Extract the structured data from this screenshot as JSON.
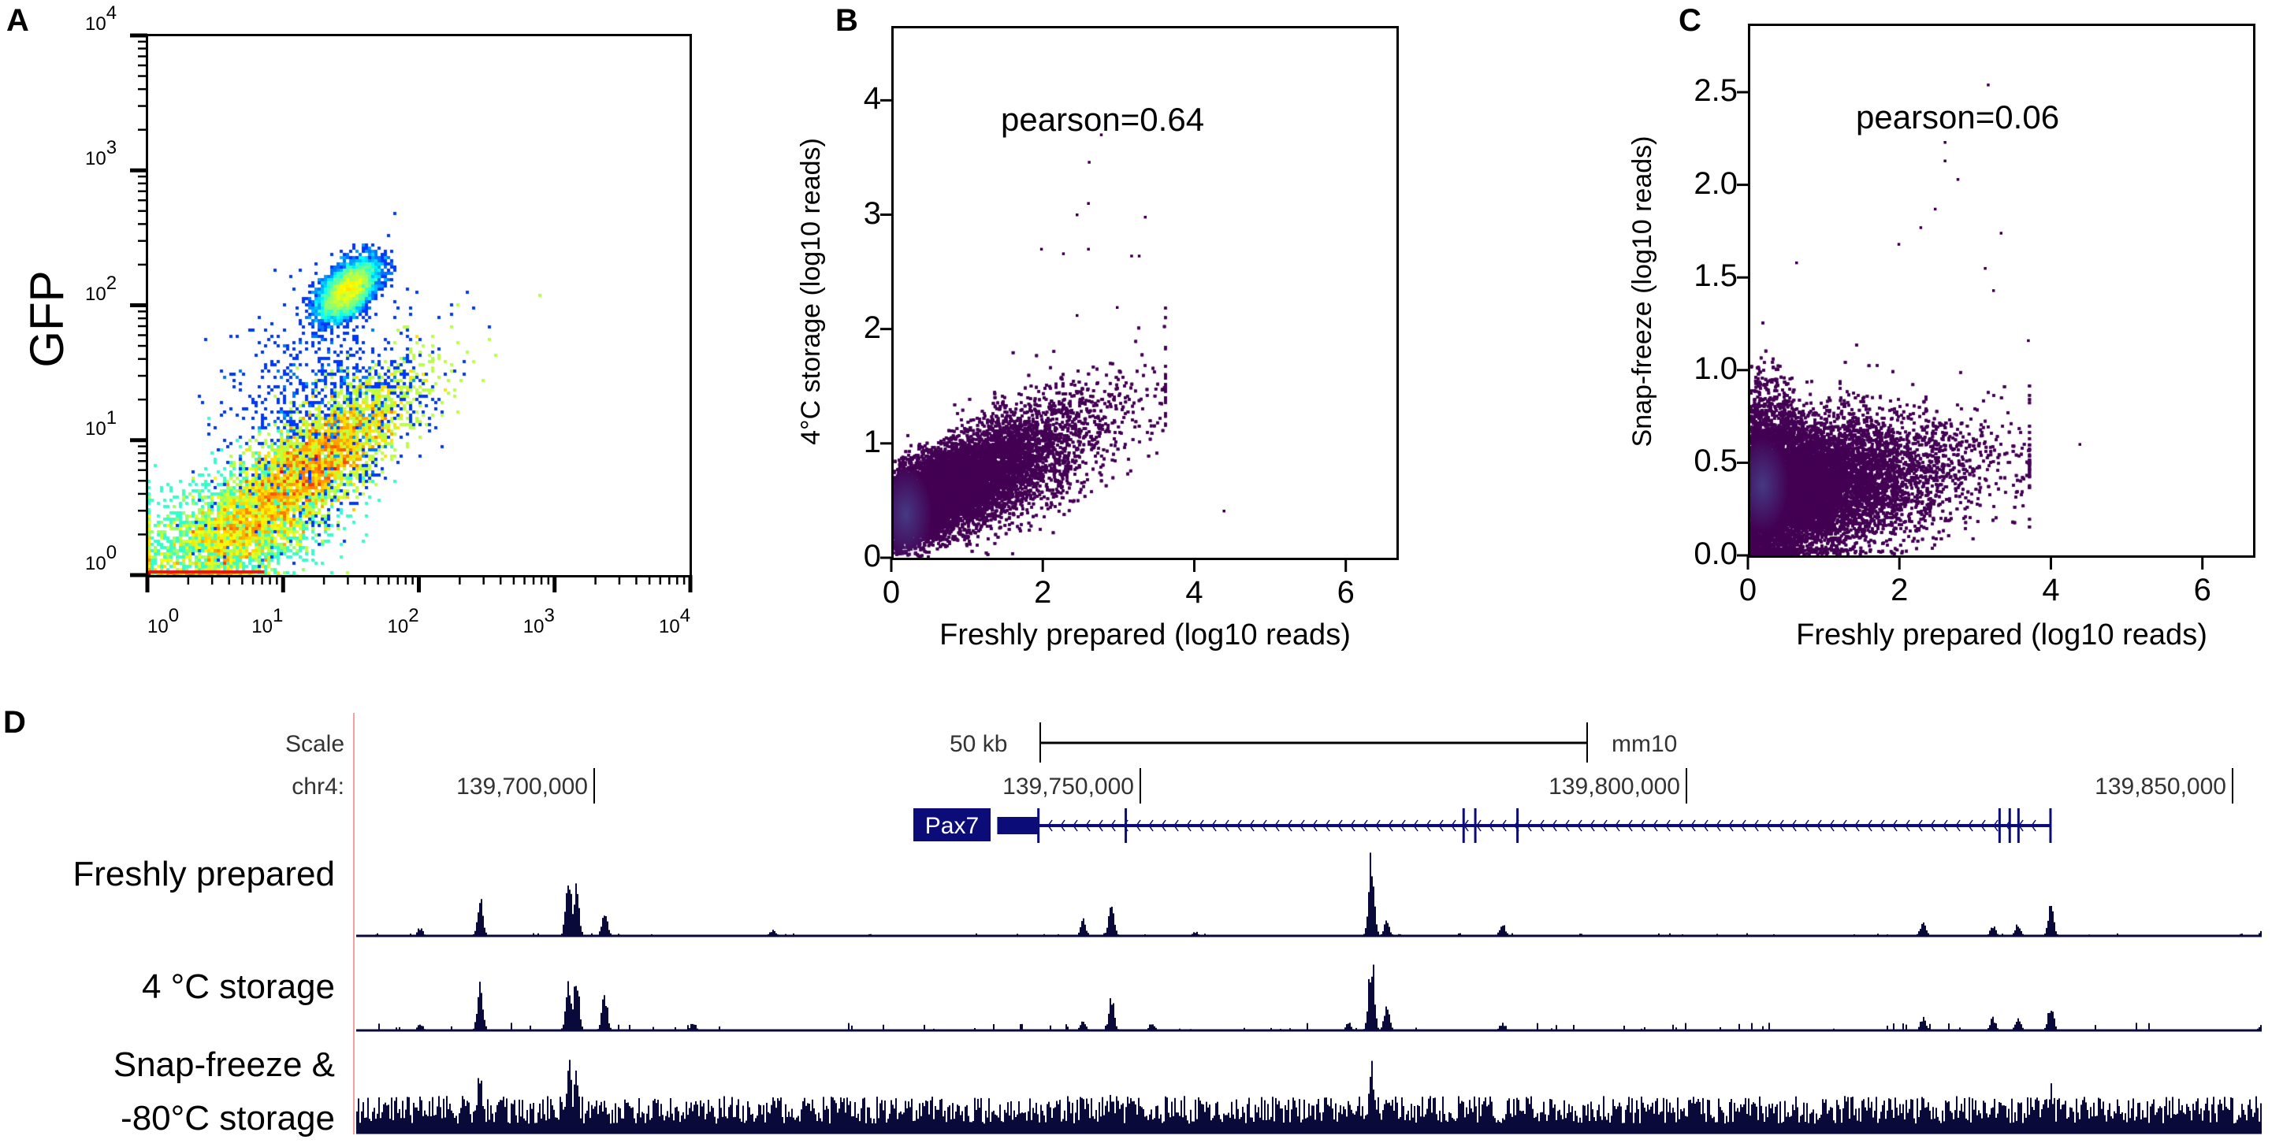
{
  "panels": {
    "A": "A",
    "B": "B",
    "C": "C",
    "D": "D"
  },
  "chart_data": [
    {
      "panel": "A",
      "type": "scatter",
      "style": "density",
      "colormap": "jet",
      "ylabel": "GFP",
      "xlabel": "",
      "x_scale": "log",
      "y_scale": "log",
      "xlim": [
        1,
        10000
      ],
      "ylim": [
        1,
        10000
      ],
      "x_ticks": [
        {
          "base": "10",
          "exp": "0"
        },
        {
          "base": "10",
          "exp": "1"
        },
        {
          "base": "10",
          "exp": "2"
        },
        {
          "base": "10",
          "exp": "3"
        },
        {
          "base": "10",
          "exp": "4"
        }
      ],
      "y_ticks": [
        {
          "base": "10",
          "exp": "0"
        },
        {
          "base": "10",
          "exp": "1"
        },
        {
          "base": "10",
          "exp": "2"
        },
        {
          "base": "10",
          "exp": "3"
        },
        {
          "base": "10",
          "exp": "4"
        }
      ],
      "density_peaks": [
        {
          "x": 15,
          "y": 6
        },
        {
          "x": 30,
          "y": 130
        }
      ]
    },
    {
      "panel": "B",
      "type": "scatter",
      "style": "density",
      "color": "#440154",
      "xlabel": "Freshly prepared (log10 reads)",
      "ylabel": "4°C storage (log10 reads)",
      "xlim": [
        0,
        6.7
      ],
      "ylim": [
        0,
        4.65
      ],
      "x_ticks": [
        "0",
        "2",
        "4",
        "6"
      ],
      "y_ticks": [
        "0",
        "1",
        "2",
        "3",
        "4"
      ],
      "annotation": "pearson=0.64",
      "outliers": [
        [
          2.61,
          3.46
        ],
        [
          2.6,
          3.1
        ],
        [
          2.45,
          3.0
        ],
        [
          3.35,
          2.98
        ],
        [
          1.98,
          2.7
        ],
        [
          2.27,
          2.66
        ],
        [
          2.6,
          2.7
        ],
        [
          3.17,
          2.64
        ],
        [
          3.27,
          2.64
        ],
        [
          2.98,
          2.19
        ],
        [
          2.45,
          2.12
        ],
        [
          4.39,
          0.41
        ],
        [
          2.77,
          3.7
        ]
      ]
    },
    {
      "panel": "C",
      "type": "scatter",
      "style": "density",
      "color": "#440154",
      "xlabel": "Freshly prepared (log10 reads)",
      "ylabel": "Snap-freeze (log10 reads)",
      "xlim": [
        0,
        6.7
      ],
      "ylim": [
        0,
        2.87
      ],
      "x_ticks": [
        "0",
        "2",
        "4",
        "6"
      ],
      "y_ticks": [
        "0.0",
        "0.5",
        "1.0",
        "1.5",
        "2.0",
        "2.5"
      ],
      "annotation": "pearson=0.06",
      "outliers": [
        [
          3.17,
          2.54
        ],
        [
          2.6,
          2.23
        ],
        [
          2.6,
          2.13
        ],
        [
          2.77,
          2.03
        ],
        [
          2.47,
          1.87
        ],
        [
          2.28,
          1.77
        ],
        [
          3.34,
          1.74
        ],
        [
          1.99,
          1.68
        ],
        [
          0.64,
          1.58
        ],
        [
          3.13,
          1.55
        ],
        [
          3.24,
          1.43
        ],
        [
          4.38,
          0.6
        ],
        [
          3.7,
          1.16
        ]
      ]
    },
    {
      "panel": "D",
      "type": "genome_browser",
      "scale_label": "Scale",
      "scale_bar": "50 kb",
      "assembly": "mm10",
      "chrom_label": "chr4:",
      "positions": [
        {
          "pos": 139700000,
          "label": "139,700,000"
        },
        {
          "pos": 139750000,
          "label": "139,750,000"
        },
        {
          "pos": 139800000,
          "label": "139,800,000"
        },
        {
          "pos": 139850000,
          "label": "139,850,000"
        }
      ],
      "gene": {
        "name": "Pax7",
        "strand": "-",
        "color": "#0c0c78",
        "start": 139736900,
        "end": 139833330,
        "utr_block": [
          139736900,
          139740700
        ],
        "exons": [
          139740670,
          139748670,
          139779600,
          139780670,
          139784530,
          139828670,
          139829600,
          139830400,
          139833330
        ]
      },
      "track_color": "#0a0a3a",
      "tracks": [
        {
          "label": [
            "Freshly prepared"
          ],
          "background": 0.01,
          "peaks": [
            [
              139684000,
              0.1
            ],
            [
              139689500,
              0.45
            ],
            [
              139697600,
              0.85
            ],
            [
              139698300,
              0.65
            ],
            [
              139700900,
              0.35
            ],
            [
              139716300,
              0.08
            ],
            [
              139744700,
              0.2
            ],
            [
              139747300,
              0.38
            ],
            [
              139755000,
              0.05
            ],
            [
              139771100,
              1.0
            ],
            [
              139772500,
              0.18
            ],
            [
              139783100,
              0.17
            ],
            [
              139821600,
              0.2
            ],
            [
              139828000,
              0.12
            ],
            [
              139830300,
              0.15
            ],
            [
              139833300,
              0.37
            ],
            [
              139852700,
              0.07
            ]
          ]
        },
        {
          "label": [
            "4 °C storage"
          ],
          "background": 0.03,
          "peaks": [
            [
              139684000,
              0.1
            ],
            [
              139689500,
              0.58
            ],
            [
              139697600,
              0.65
            ],
            [
              139698300,
              0.67
            ],
            [
              139700900,
              0.48
            ],
            [
              139709000,
              0.1
            ],
            [
              139744700,
              0.13
            ],
            [
              139747300,
              0.42
            ],
            [
              139751000,
              0.1
            ],
            [
              139769000,
              0.1
            ],
            [
              139771100,
              1.0
            ],
            [
              139772500,
              0.33
            ],
            [
              139783100,
              0.1
            ],
            [
              139821600,
              0.18
            ],
            [
              139828000,
              0.17
            ],
            [
              139830300,
              0.18
            ],
            [
              139833300,
              0.35
            ],
            [
              139852700,
              0.13
            ]
          ]
        },
        {
          "label": [
            "Snap-freeze &",
            "-80°C storage"
          ],
          "background": 0.25,
          "peaks": [
            [
              139684000,
              0.45
            ],
            [
              139689500,
              0.8
            ],
            [
              139697600,
              0.95
            ],
            [
              139698300,
              0.7
            ],
            [
              139700900,
              0.45
            ],
            [
              139744700,
              0.4
            ],
            [
              139747300,
              0.5
            ],
            [
              139771100,
              1.0
            ],
            [
              139772500,
              0.45
            ],
            [
              139821600,
              0.4
            ],
            [
              139828000,
              0.45
            ],
            [
              139833300,
              0.55
            ]
          ]
        }
      ]
    }
  ]
}
